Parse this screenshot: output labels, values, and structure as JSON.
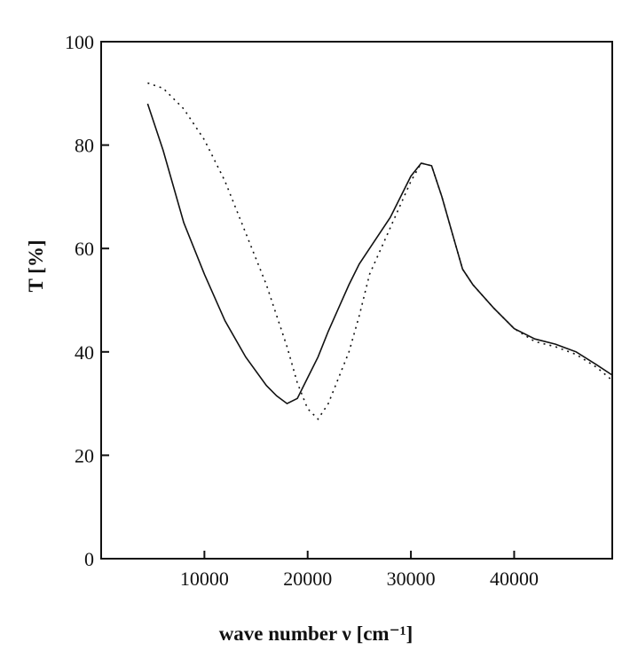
{
  "chart_data": {
    "type": "line",
    "xlabel": "wave number  ν [cm⁻¹]",
    "ylabel": "T  [%]",
    "x": [
      4500,
      6000,
      8000,
      10000,
      12000,
      14000,
      16000,
      17000,
      18000,
      19000,
      20000,
      21000,
      22000,
      24000,
      25000,
      26000,
      28000,
      30000,
      31000,
      32000,
      33000,
      34000,
      35000,
      36000,
      38000,
      40000,
      42000,
      44000,
      46000,
      48000,
      49500
    ],
    "series": [
      {
        "color": "#111111",
        "line_style": "solid",
        "values": [
          88,
          79,
          65,
          55,
          46,
          39,
          33.5,
          31.5,
          30,
          31,
          35,
          39,
          44,
          53,
          57,
          60,
          66,
          74,
          76.5,
          76,
          70,
          63,
          56,
          53,
          48.5,
          44.5,
          42.5,
          41.5,
          40,
          37.5,
          35.5
        ]
      },
      {
        "color": "#111111",
        "line_style": "dotted",
        "values": [
          92,
          91,
          87,
          81,
          73,
          63,
          53,
          47,
          41,
          34,
          29,
          27,
          30,
          40,
          47,
          55,
          64,
          73,
          76.5,
          76,
          70,
          63,
          56,
          53,
          48.5,
          44.5,
          42,
          41,
          39.5,
          37,
          34.5
        ]
      }
    ],
    "xlim": [
      0,
      49500
    ],
    "ylim": [
      0,
      100
    ],
    "xticks": [
      10000,
      20000,
      30000,
      40000
    ],
    "yticks": [
      0,
      20,
      40,
      60,
      80,
      100
    ]
  }
}
